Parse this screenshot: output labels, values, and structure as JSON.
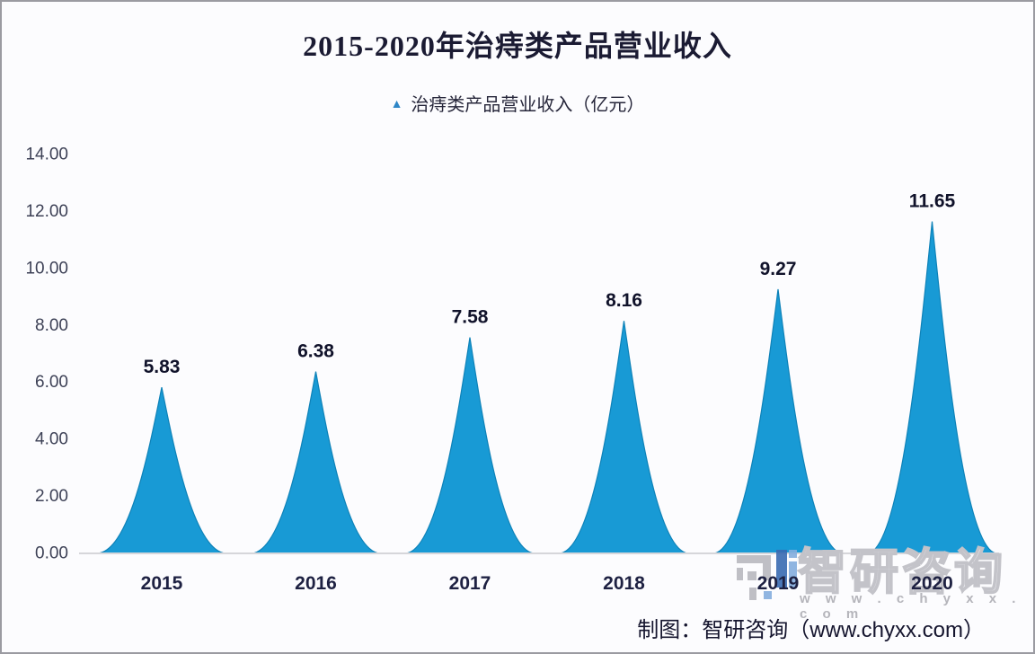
{
  "page": {
    "background": "#fcfcfe",
    "border_color": "#9b9ba1"
  },
  "title": "2015-2020年治痔类产品营业收入",
  "legend": {
    "marker_glyph": "▲",
    "marker_color": "#2e86c7",
    "label": "治痔类产品营业收入（亿元）"
  },
  "chart_data": {
    "type": "bar",
    "bar_shape": "peaked-triangle",
    "title": "2015-2020年治痔类产品营业收入",
    "series_name": "治痔类产品营业收入（亿元）",
    "categories": [
      "2015",
      "2016",
      "2017",
      "2018",
      "2019",
      "2020"
    ],
    "values": [
      5.83,
      6.38,
      7.58,
      8.16,
      9.27,
      11.65
    ],
    "value_labels": [
      "5.83",
      "6.38",
      "7.58",
      "8.16",
      "9.27",
      "11.65"
    ],
    "xlabel": "",
    "ylabel": "",
    "ylim": [
      0,
      14
    ],
    "ytick_step": 2,
    "ytick_labels": [
      "0.00",
      "2.00",
      "4.00",
      "6.00",
      "8.00",
      "10.00",
      "12.00",
      "14.00"
    ],
    "grid": false,
    "legend_position": "top",
    "bar_color": "#189ad5",
    "bar_edge_color": "#0e82b8",
    "axis_line_color": "#d6d6da",
    "tick_label_color": "#3d4156",
    "category_label_color": "#1e2142",
    "value_label_color": "#10122a"
  },
  "watermark": {
    "brand": "智研咨询",
    "url_spaced": "w w w . c h y x x . c o m"
  },
  "footer": {
    "credit": "制图：智研咨询（www.chyxx.com）"
  }
}
